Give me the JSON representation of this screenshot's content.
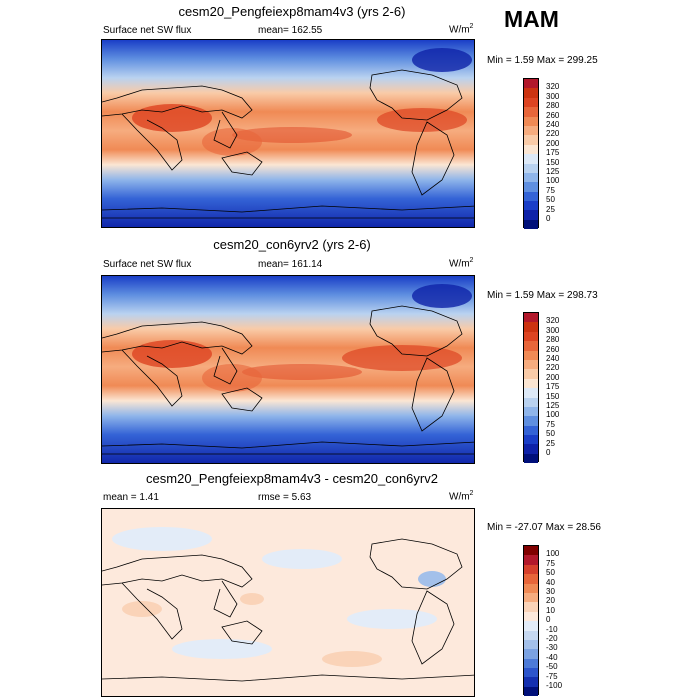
{
  "season": "MAM",
  "panels": [
    {
      "title": "cesm20_Pengfeiexp8mam4v3 (yrs 2-6)",
      "left_label": "Surface net SW flux",
      "center_label": "mean=  162.55",
      "units": "W/m",
      "units_sup": "2",
      "minmax": "Min =   1.59 Max = 299.25",
      "colorbar_labels": [
        "320",
        "300",
        "280",
        "260",
        "240",
        "220",
        "200",
        "175",
        "150",
        "125",
        "100",
        "75",
        "50",
        "25",
        "0"
      ]
    },
    {
      "title": "cesm20_con6yrv2 (yrs 2-6)",
      "left_label": "Surface net SW flux",
      "center_label": "mean=  161.14",
      "units": "W/m",
      "units_sup": "2",
      "minmax": "Min =   1.59 Max = 298.73",
      "colorbar_labels": [
        "320",
        "300",
        "280",
        "260",
        "240",
        "220",
        "200",
        "175",
        "150",
        "125",
        "100",
        "75",
        "50",
        "25",
        "0"
      ]
    },
    {
      "title": "cesm20_Pengfeiexp8mam4v3 - cesm20_con6yrv2",
      "left_label": "mean =   1.41",
      "center_label": "rmse =   5.63",
      "units": "W/m",
      "units_sup": "2",
      "minmax": "Min = -27.07 Max =  28.56",
      "colorbar_labels": [
        "100",
        "75",
        "50",
        "40",
        "30",
        "20",
        "10",
        "0",
        "-10",
        "-20",
        "-30",
        "-40",
        "-50",
        "-75",
        "-100"
      ]
    }
  ],
  "colors": {
    "abs_scale": [
      "#b2182b",
      "#cc3311",
      "#dd4422",
      "#e8663a",
      "#f08a55",
      "#f6ac7f",
      "#f9cba8",
      "#fbe6d3",
      "#dde9f7",
      "#b9d2f0",
      "#8fb5ea",
      "#5f8fe0",
      "#3463d6",
      "#1a3ec7",
      "#0e22a8",
      "#00107a"
    ],
    "diff_scale": [
      "#800000",
      "#b2182b",
      "#d6402c",
      "#e8663a",
      "#f08a55",
      "#f6ac7f",
      "#fad3b8",
      "#fde9dc",
      "#e3ecf8",
      "#c6d8f1",
      "#a3c0ea",
      "#7ba2e2",
      "#4d7bd8",
      "#2c55cc",
      "#1430b0",
      "#00107a"
    ]
  }
}
